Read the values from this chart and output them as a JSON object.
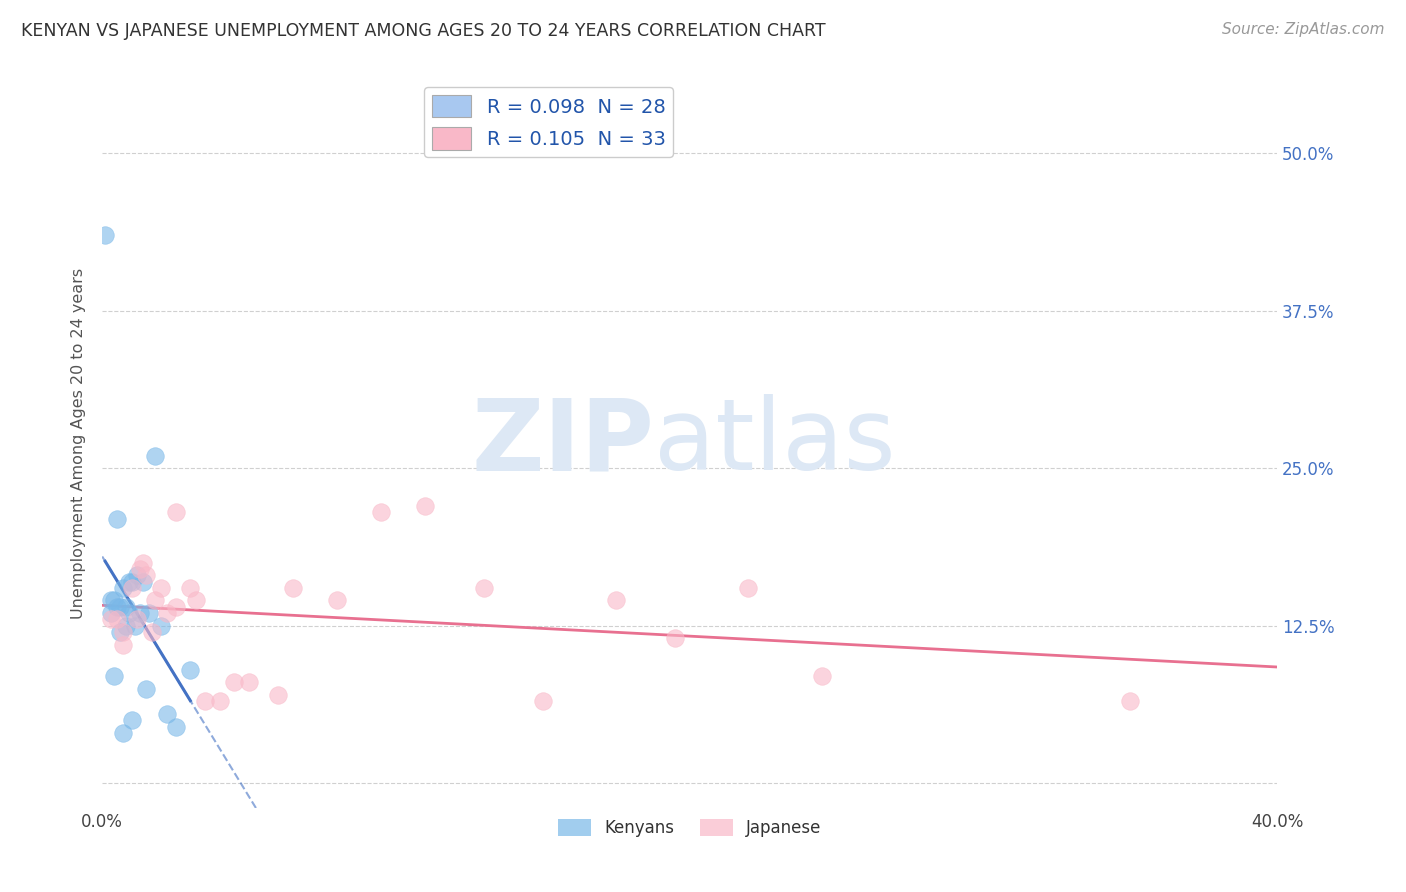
{
  "title": "KENYAN VS JAPANESE UNEMPLOYMENT AMONG AGES 20 TO 24 YEARS CORRELATION CHART",
  "source": "Source: ZipAtlas.com",
  "ylabel": "Unemployment Among Ages 20 to 24 years",
  "xlim": [
    0.0,
    0.4
  ],
  "ylim": [
    -0.02,
    0.56
  ],
  "xtick_positions": [
    0.0,
    0.05,
    0.1,
    0.15,
    0.2,
    0.25,
    0.3,
    0.35,
    0.4
  ],
  "xtick_labels": [
    "0.0%",
    "",
    "",
    "",
    "",
    "",
    "",
    "",
    "40.0%"
  ],
  "ytick_positions": [
    0.0,
    0.125,
    0.25,
    0.375,
    0.5
  ],
  "ytick_labels": [
    "",
    "12.5%",
    "25.0%",
    "37.5%",
    "50.0%"
  ],
  "legend_entries": [
    {
      "label_r": "R = ",
      "label_rv": "0.098",
      "label_n": "  N = ",
      "label_nv": "28",
      "color": "#a8c8f0"
    },
    {
      "label_r": "R = ",
      "label_rv": "0.105",
      "label_n": "  N = ",
      "label_nv": "33",
      "color": "#f9b8c8"
    }
  ],
  "bottom_legend": [
    "Kenyans",
    "Japanese"
  ],
  "kenyan_color": "#7ab8e8",
  "japanese_color": "#f9b8c8",
  "kenyan_edge_color": "#7ab8e8",
  "japanese_edge_color": "#f9b8c8",
  "kenyan_line_color": "#4472c4",
  "japanese_line_color": "#e87090",
  "kenyan_x": [
    0.001,
    0.003,
    0.003,
    0.004,
    0.004,
    0.005,
    0.005,
    0.006,
    0.006,
    0.007,
    0.007,
    0.008,
    0.008,
    0.009,
    0.009,
    0.01,
    0.01,
    0.011,
    0.012,
    0.013,
    0.014,
    0.015,
    0.016,
    0.018,
    0.02,
    0.022,
    0.025,
    0.03
  ],
  "kenyan_y": [
    0.435,
    0.145,
    0.135,
    0.145,
    0.085,
    0.14,
    0.21,
    0.14,
    0.12,
    0.04,
    0.155,
    0.14,
    0.125,
    0.16,
    0.135,
    0.16,
    0.05,
    0.125,
    0.165,
    0.135,
    0.16,
    0.075,
    0.135,
    0.26,
    0.125,
    0.055,
    0.045,
    0.09
  ],
  "japanese_x": [
    0.003,
    0.005,
    0.007,
    0.01,
    0.012,
    0.013,
    0.014,
    0.015,
    0.017,
    0.018,
    0.02,
    0.022,
    0.025,
    0.025,
    0.03,
    0.032,
    0.035,
    0.04,
    0.045,
    0.05,
    0.06,
    0.065,
    0.08,
    0.095,
    0.11,
    0.13,
    0.15,
    0.175,
    0.195,
    0.22,
    0.245,
    0.35,
    0.007
  ],
  "japanese_y": [
    0.13,
    0.13,
    0.12,
    0.155,
    0.13,
    0.17,
    0.175,
    0.165,
    0.12,
    0.145,
    0.155,
    0.135,
    0.215,
    0.14,
    0.155,
    0.145,
    0.065,
    0.065,
    0.08,
    0.08,
    0.07,
    0.155,
    0.145,
    0.215,
    0.22,
    0.155,
    0.065,
    0.145,
    0.115,
    0.155,
    0.085,
    0.065,
    0.11
  ],
  "watermark_zip": "ZIP",
  "watermark_atlas": "atlas",
  "background_color": "#ffffff",
  "grid_color": "#d0d0d0",
  "marker_size": 160,
  "marker_alpha": 0.6
}
